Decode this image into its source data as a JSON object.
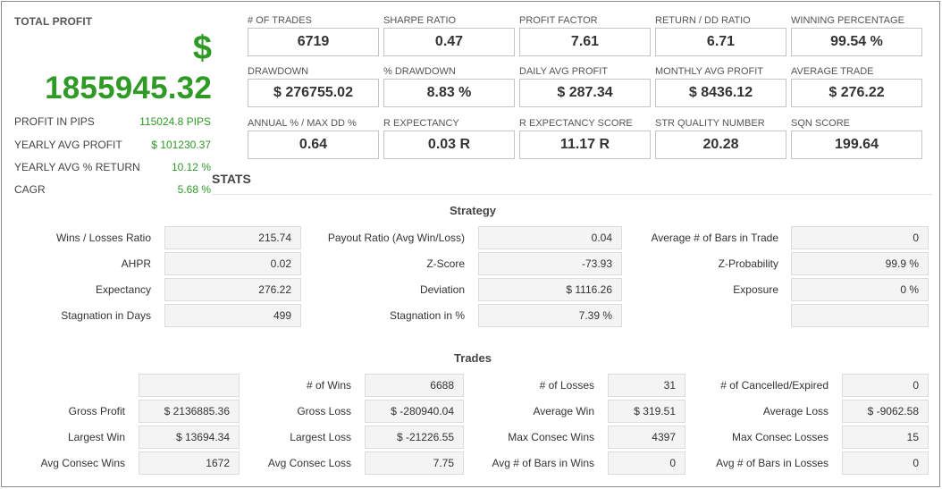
{
  "profit": {
    "title": "TOTAL PROFIT",
    "currency": "$",
    "amount": "1855945.32",
    "rows": [
      {
        "label": "PROFIT IN PIPS",
        "value": "115024.8 PIPS"
      },
      {
        "label": "YEARLY AVG PROFIT",
        "value": "$ 101230.37"
      },
      {
        "label": "YEARLY AVG % RETURN",
        "value": "10.12 %"
      },
      {
        "label": "CAGR",
        "value": "5.68 %"
      }
    ]
  },
  "metrics": [
    [
      {
        "label": "# OF TRADES",
        "value": "6719"
      },
      {
        "label": "SHARPE RATIO",
        "value": "0.47"
      },
      {
        "label": "PROFIT FACTOR",
        "value": "7.61"
      },
      {
        "label": "RETURN / DD RATIO",
        "value": "6.71"
      },
      {
        "label": "WINNING PERCENTAGE",
        "value": "99.54 %"
      }
    ],
    [
      {
        "label": "DRAWDOWN",
        "value": "$ 276755.02"
      },
      {
        "label": "% DRAWDOWN",
        "value": "8.83 %"
      },
      {
        "label": "DAILY AVG PROFIT",
        "value": "$ 287.34"
      },
      {
        "label": "MONTHLY AVG PROFIT",
        "value": "$ 8436.12"
      },
      {
        "label": "AVERAGE TRADE",
        "value": "$ 276.22"
      }
    ],
    [
      {
        "label": "ANNUAL % / MAX DD %",
        "value": "0.64"
      },
      {
        "label": "R EXPECTANCY",
        "value": "0.03 R"
      },
      {
        "label": "R EXPECTANCY SCORE",
        "value": "11.17 R"
      },
      {
        "label": "STR QUALITY NUMBER",
        "value": "20.28"
      },
      {
        "label": "SQN SCORE",
        "value": "199.64"
      }
    ]
  ],
  "stats_title": "STATS",
  "strategy": {
    "title": "Strategy",
    "rows": [
      [
        {
          "label": "Wins / Losses Ratio",
          "value": "215.74"
        },
        {
          "label": "Payout Ratio (Avg Win/Loss)",
          "value": "0.04"
        },
        {
          "label": "Average # of Bars in Trade",
          "value": "0"
        }
      ],
      [
        {
          "label": "AHPR",
          "value": "0.02"
        },
        {
          "label": "Z-Score",
          "value": "-73.93"
        },
        {
          "label": "Z-Probability",
          "value": "99.9 %"
        }
      ],
      [
        {
          "label": "Expectancy",
          "value": "276.22"
        },
        {
          "label": "Deviation",
          "value": "$ 1116.26"
        },
        {
          "label": "Exposure",
          "value": "0 %"
        }
      ],
      [
        {
          "label": "Stagnation in Days",
          "value": "499"
        },
        {
          "label": "Stagnation in %",
          "value": "7.39 %"
        },
        {
          "label": "",
          "value": ""
        }
      ]
    ]
  },
  "trades": {
    "title": "Trades",
    "rows": [
      [
        {
          "label": "",
          "value": ""
        },
        {
          "label": "# of Wins",
          "value": "6688"
        },
        {
          "label": "# of Losses",
          "value": "31"
        },
        {
          "label": "# of Cancelled/Expired",
          "value": "0"
        }
      ],
      [
        {
          "label": "Gross Profit",
          "value": "$ 2136885.36"
        },
        {
          "label": "Gross Loss",
          "value": "$ -280940.04"
        },
        {
          "label": "Average Win",
          "value": "$ 319.51"
        },
        {
          "label": "Average Loss",
          "value": "$ -9062.58"
        }
      ],
      [
        {
          "label": "Largest Win",
          "value": "$ 13694.34"
        },
        {
          "label": "Largest Loss",
          "value": "$ -21226.55"
        },
        {
          "label": "Max Consec Wins",
          "value": "4397"
        },
        {
          "label": "Max Consec Losses",
          "value": "15"
        }
      ],
      [
        {
          "label": "Avg Consec Wins",
          "value": "1672"
        },
        {
          "label": "Avg Consec Loss",
          "value": "7.75"
        },
        {
          "label": "Avg # of Bars in Wins",
          "value": "0"
        },
        {
          "label": "Avg # of Bars in Losses",
          "value": "0"
        }
      ]
    ]
  },
  "colors": {
    "profit_green": "#2f9a25",
    "box_border": "#c4c4c4",
    "stat_box_bg": "#f4f4f4"
  }
}
